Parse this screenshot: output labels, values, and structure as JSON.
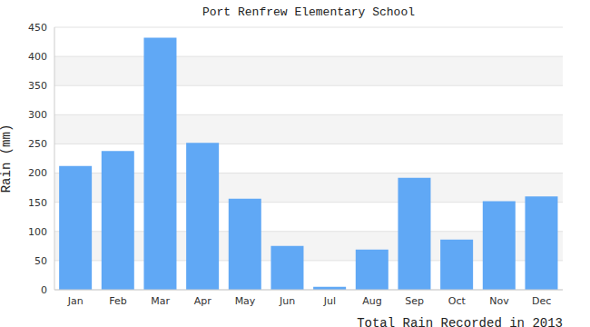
{
  "chart_data": {
    "type": "bar",
    "title": "Port Renfrew Elementary School",
    "y_label": "Rain (mm)",
    "x_label": "Total Rain Recorded in 2013",
    "categories": [
      "Jan",
      "Feb",
      "Mar",
      "Apr",
      "May",
      "Jun",
      "Jul",
      "Aug",
      "Sep",
      "Oct",
      "Nov",
      "Dec"
    ],
    "values": [
      212,
      238,
      432,
      252,
      156,
      75,
      5,
      69,
      192,
      86,
      152,
      160
    ],
    "color": "#60a8f5",
    "ylim": [
      0,
      450
    ],
    "yticks": [
      0,
      50,
      100,
      150,
      200,
      250,
      300,
      350,
      400,
      450
    ],
    "grid": true
  }
}
